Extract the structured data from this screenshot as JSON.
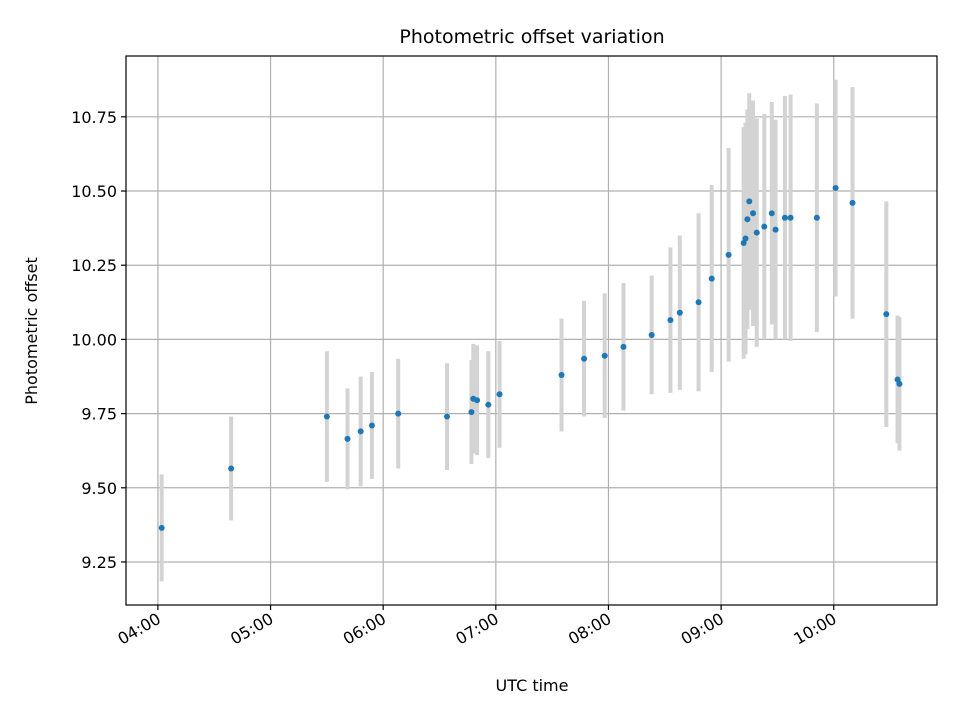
{
  "chart_data": {
    "type": "scatter",
    "title": "Photometric offset variation",
    "xlabel": "UTC time",
    "ylabel": "Photometric offset",
    "x_ticks": [
      "04:00",
      "05:00",
      "06:00",
      "07:00",
      "08:00",
      "09:00",
      "10:00"
    ],
    "y_ticks": [
      "9.25",
      "9.50",
      "9.75",
      "10.00",
      "10.25",
      "10.50",
      "10.75"
    ],
    "xlim": [
      "03:43",
      "10:55"
    ],
    "ylim": [
      9.105,
      10.955
    ],
    "grid": true,
    "colors": {
      "points": "#1f77b4",
      "errorbars": "#d3d3d3",
      "grid": "#b0b0b0",
      "axes": "#000000"
    },
    "points": [
      {
        "x": "04:02",
        "y": 9.365,
        "err": 0.18
      },
      {
        "x": "04:39",
        "y": 9.565,
        "err": 0.175
      },
      {
        "x": "05:30",
        "y": 9.74,
        "err": 0.22
      },
      {
        "x": "05:41",
        "y": 9.665,
        "err": 0.17
      },
      {
        "x": "05:48",
        "y": 9.69,
        "err": 0.185
      },
      {
        "x": "05:54",
        "y": 9.71,
        "err": 0.18
      },
      {
        "x": "06:08",
        "y": 9.75,
        "err": 0.185
      },
      {
        "x": "06:34",
        "y": 9.74,
        "err": 0.18
      },
      {
        "x": "06:47",
        "y": 9.755,
        "err": 0.175
      },
      {
        "x": "06:48",
        "y": 9.8,
        "err": 0.185
      },
      {
        "x": "06:50",
        "y": 9.795,
        "err": 0.185
      },
      {
        "x": "06:56",
        "y": 9.78,
        "err": 0.18
      },
      {
        "x": "07:02",
        "y": 9.815,
        "err": 0.18
      },
      {
        "x": "07:35",
        "y": 9.88,
        "err": 0.19
      },
      {
        "x": "07:47",
        "y": 9.935,
        "err": 0.195
      },
      {
        "x": "07:58",
        "y": 9.945,
        "err": 0.21
      },
      {
        "x": "08:08",
        "y": 9.975,
        "err": 0.215
      },
      {
        "x": "08:23",
        "y": 10.015,
        "err": 0.2
      },
      {
        "x": "08:33",
        "y": 10.065,
        "err": 0.245
      },
      {
        "x": "08:38",
        "y": 10.09,
        "err": 0.26
      },
      {
        "x": "08:48",
        "y": 10.125,
        "err": 0.3
      },
      {
        "x": "08:55",
        "y": 10.205,
        "err": 0.315
      },
      {
        "x": "09:04",
        "y": 10.285,
        "err": 0.36
      },
      {
        "x": "09:12",
        "y": 10.325,
        "err": 0.39
      },
      {
        "x": "09:13",
        "y": 10.34,
        "err": 0.39
      },
      {
        "x": "09:14",
        "y": 10.405,
        "err": 0.37
      },
      {
        "x": "09:15",
        "y": 10.465,
        "err": 0.365
      },
      {
        "x": "09:17",
        "y": 10.425,
        "err": 0.38
      },
      {
        "x": "09:19",
        "y": 10.36,
        "err": 0.385
      },
      {
        "x": "09:23",
        "y": 10.38,
        "err": 0.38
      },
      {
        "x": "09:27",
        "y": 10.425,
        "err": 0.375
      },
      {
        "x": "09:29",
        "y": 10.37,
        "err": 0.37
      },
      {
        "x": "09:34",
        "y": 10.41,
        "err": 0.41
      },
      {
        "x": "09:37",
        "y": 10.41,
        "err": 0.415
      },
      {
        "x": "09:51",
        "y": 10.41,
        "err": 0.385
      },
      {
        "x": "10:01",
        "y": 10.51,
        "err": 0.365
      },
      {
        "x": "10:10",
        "y": 10.46,
        "err": 0.39
      },
      {
        "x": "10:28",
        "y": 10.085,
        "err": 0.38
      },
      {
        "x": "10:34",
        "y": 9.865,
        "err": 0.215
      },
      {
        "x": "10:35",
        "y": 9.85,
        "err": 0.225
      }
    ]
  }
}
